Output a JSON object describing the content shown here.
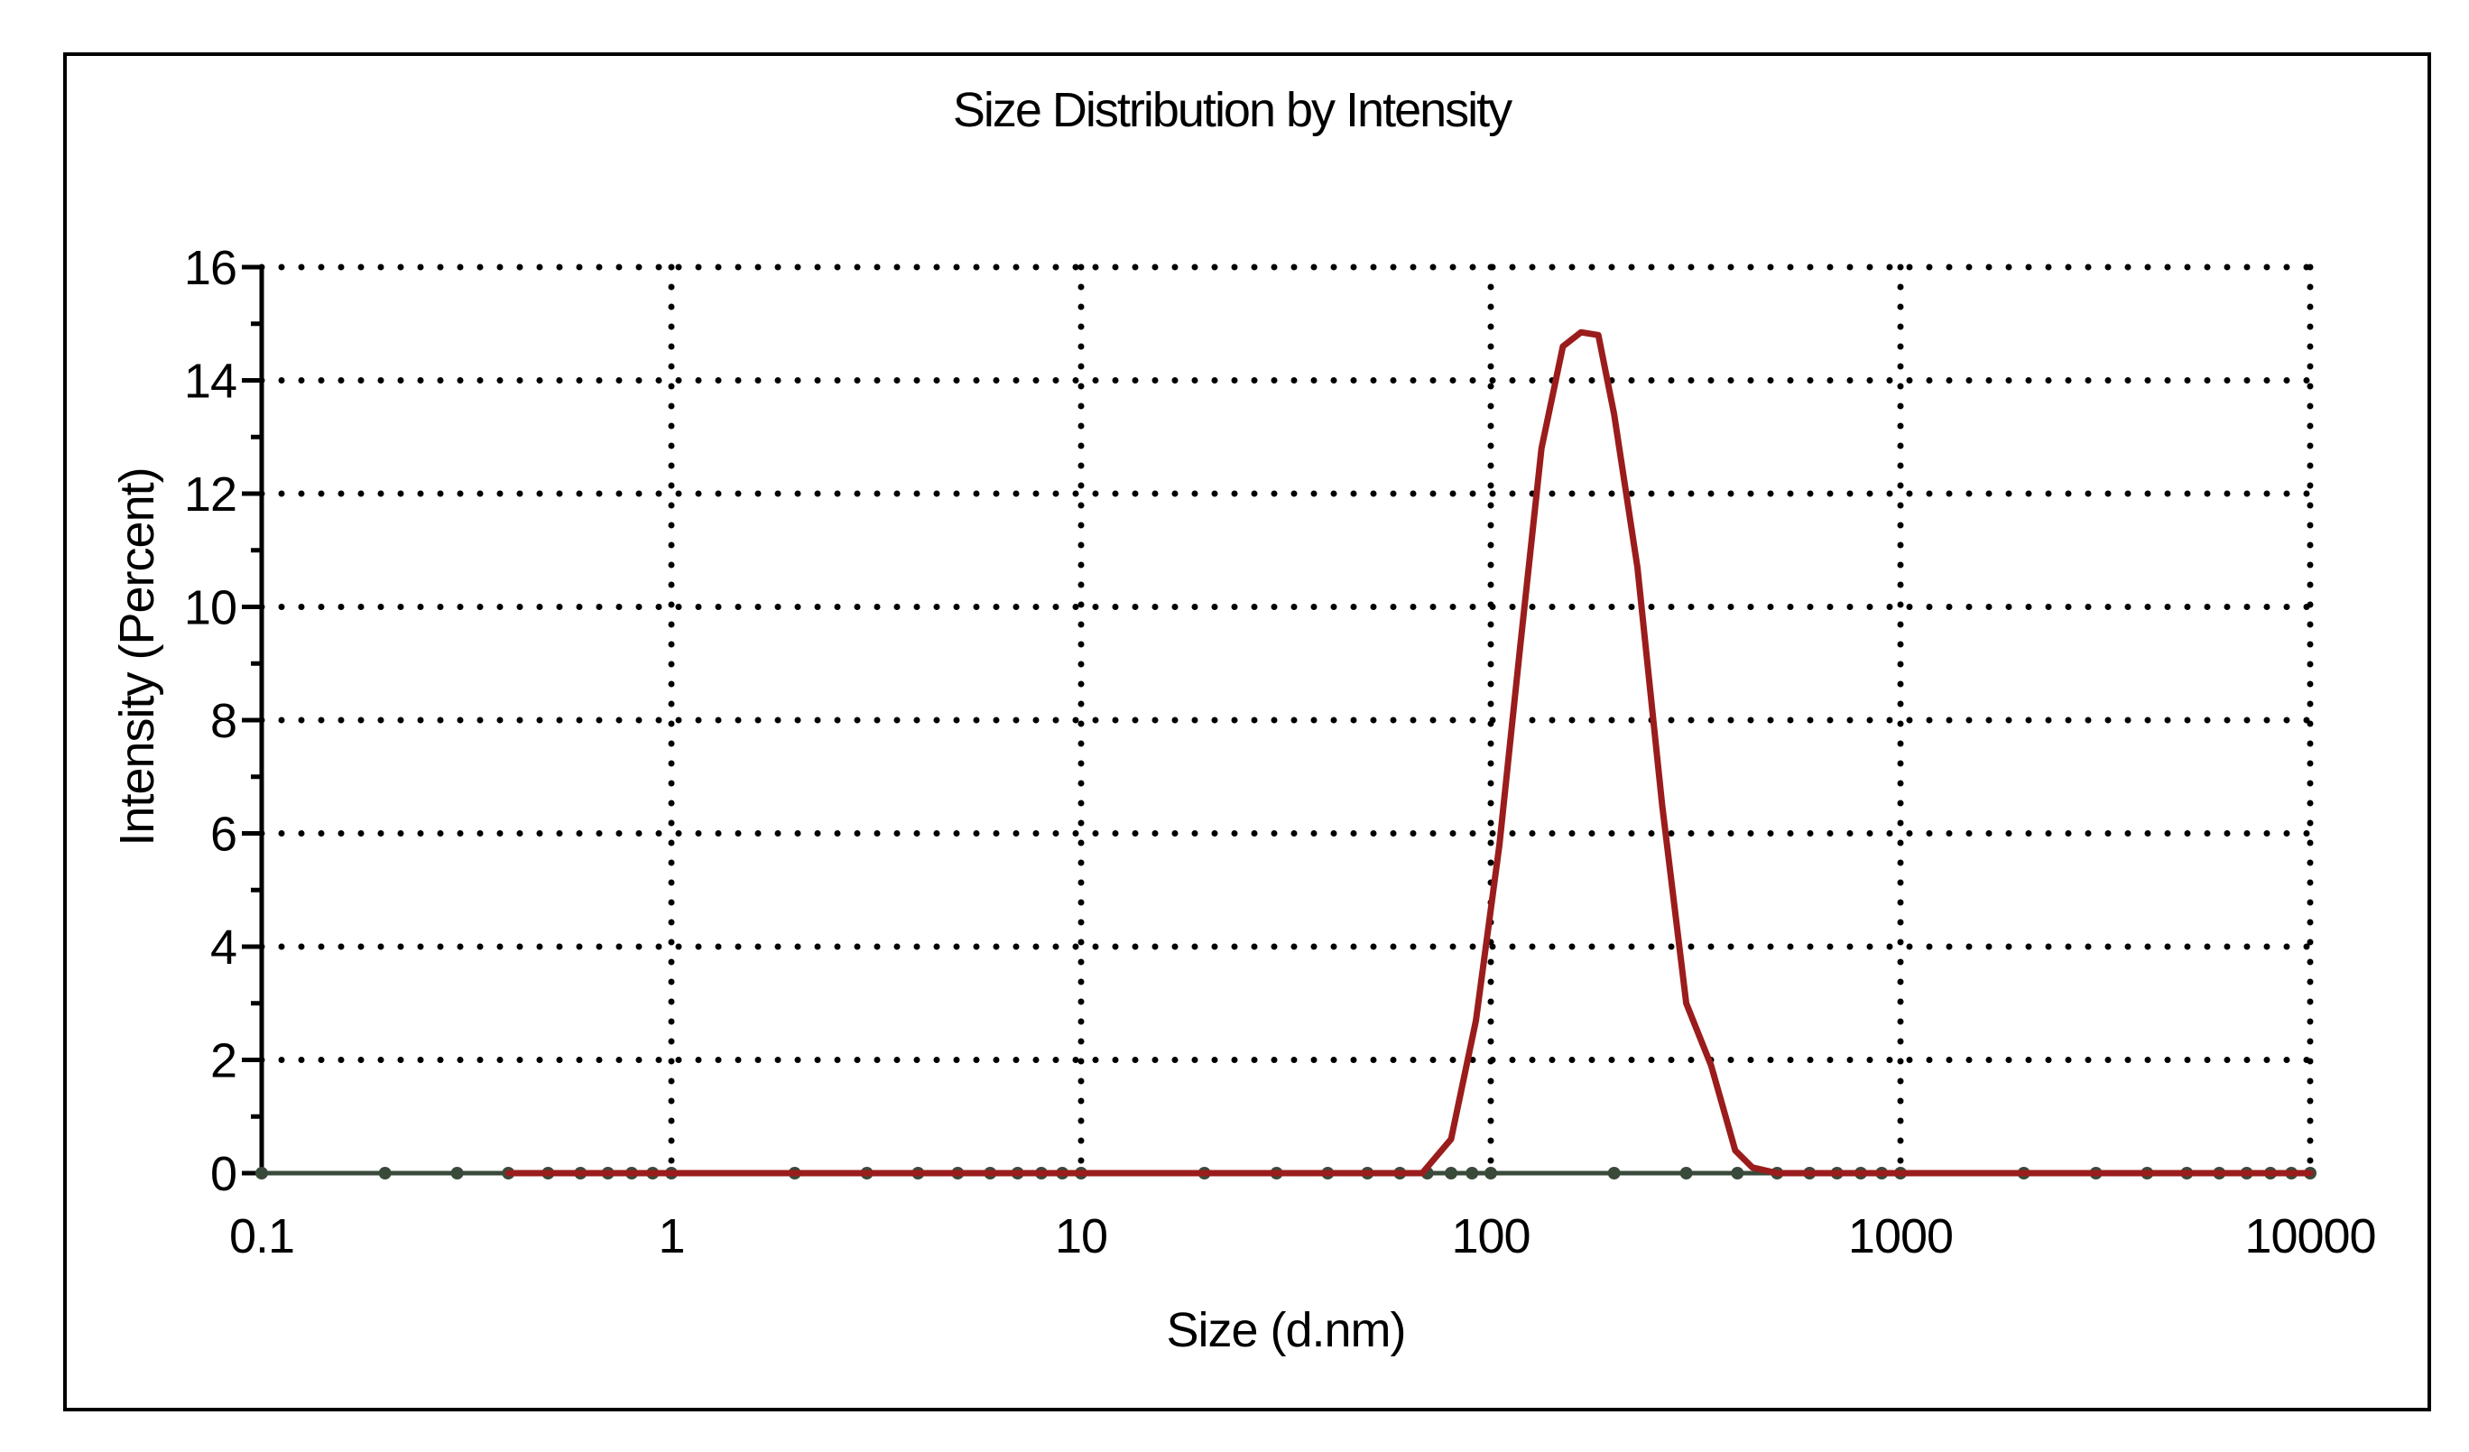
{
  "chart_data": {
    "type": "line",
    "title": "Size Distribution by Intensity",
    "xlabel": "Size (d.nm)",
    "ylabel": "Intensity (Percent)",
    "x_scale": "log",
    "xlim": [
      0.1,
      10000
    ],
    "ylim": [
      0,
      16
    ],
    "x_ticks": [
      0.1,
      1,
      10,
      100,
      1000,
      10000
    ],
    "x_tick_labels": [
      "0.1",
      "1",
      "10",
      "100",
      "1000",
      "10000"
    ],
    "y_ticks": [
      0,
      2,
      4,
      6,
      8,
      10,
      12,
      14,
      16
    ],
    "y_tick_labels": [
      "0",
      "2",
      "4",
      "6",
      "8",
      "10",
      "12",
      "14",
      "16"
    ],
    "grid": true,
    "legend": "none",
    "series": [
      {
        "color": "#9b1c1c",
        "points": [
          [
            0.4,
            0
          ],
          [
            1,
            0
          ],
          [
            5,
            0
          ],
          [
            20,
            0
          ],
          [
            50,
            0
          ],
          [
            68,
            0
          ],
          [
            80,
            0.6
          ],
          [
            92,
            2.7
          ],
          [
            105,
            5.8
          ],
          [
            118,
            9.3
          ],
          [
            133,
            12.8
          ],
          [
            150,
            14.6
          ],
          [
            166,
            14.85
          ],
          [
            183,
            14.8
          ],
          [
            200,
            13.4
          ],
          [
            228,
            10.7
          ],
          [
            262,
            6.5
          ],
          [
            300,
            3.0
          ],
          [
            345,
            1.9
          ],
          [
            395,
            0.4
          ],
          [
            435,
            0.1
          ],
          [
            500,
            0
          ],
          [
            1000,
            0
          ],
          [
            10000,
            0
          ]
        ]
      }
    ],
    "baseline_dots_x": [
      0.1,
      0.2,
      0.3,
      0.4,
      0.5,
      0.6,
      0.7,
      0.8,
      0.9,
      1,
      2,
      3,
      4,
      5,
      6,
      7,
      8,
      9,
      10,
      20,
      30,
      40,
      50,
      60,
      70,
      80,
      90,
      100,
      200,
      300,
      400,
      500,
      600,
      700,
      800,
      900,
      1000,
      2000,
      3000,
      4000,
      5000,
      6000,
      7000,
      8000,
      9000,
      10000
    ]
  },
  "colors": {
    "line": "#9b1c1c",
    "axis": "#000000",
    "grid": "#000000",
    "frame": "#000000",
    "baseline": "#3a4a3a"
  }
}
